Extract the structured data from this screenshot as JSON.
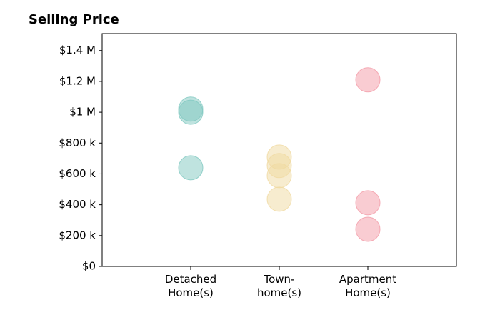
{
  "chart_data": {
    "type": "scatter",
    "title": "Selling Price",
    "xlim": [
      0,
      4
    ],
    "xticks": [
      {
        "value": 1,
        "label": "Detached\nHome(s)"
      },
      {
        "value": 2,
        "label": "Town-\nhome(s)"
      },
      {
        "value": 3,
        "label": "Apartment\nHome(s)"
      }
    ],
    "ylim": [
      0,
      1510000
    ],
    "yticks": [
      {
        "value": 0,
        "label": "$0"
      },
      {
        "value": 200000,
        "label": "$200 k"
      },
      {
        "value": 400000,
        "label": "$400 k"
      },
      {
        "value": 600000,
        "label": "$600 k"
      },
      {
        "value": 800000,
        "label": "$800 k"
      },
      {
        "value": 1000000,
        "label": "$1 M"
      },
      {
        "value": 1200000,
        "label": "$1.2 M"
      },
      {
        "value": 1400000,
        "label": "$1.4 M"
      }
    ],
    "series": [
      {
        "color": "#7fc8c0",
        "x": [
          1,
          1,
          1
        ],
        "values": [
          1020000,
          1000000,
          640000
        ]
      },
      {
        "color": "#f0d9a0",
        "x": [
          2,
          2,
          2,
          2
        ],
        "values": [
          709000,
          654000,
          589000,
          436000
        ]
      },
      {
        "color": "#f39aa6",
        "x": [
          3,
          3,
          3
        ],
        "values": [
          1210000,
          413000,
          241000
        ]
      }
    ]
  }
}
